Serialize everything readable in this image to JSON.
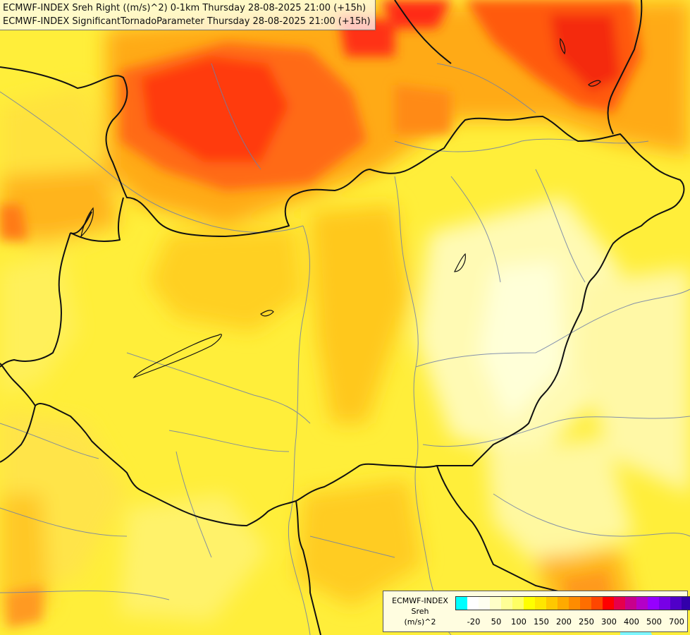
{
  "header": {
    "line1": "ECMWF-INDEX Sreh Right ((m/s)^2) 0-1km Thursday 28-08-2025 21:00 (+15h)",
    "line2": "ECMWF-INDEX SignificantTornadoParameter Thursday 28-08-2025 21:00 (+15h)"
  },
  "legend": {
    "title": [
      "ECMWF-INDEX",
      "Sreh",
      "(m/s)^2"
    ],
    "colors": [
      "#00ffff",
      "#ffffff",
      "#fffff0",
      "#ffffc8",
      "#ffff96",
      "#ffff64",
      "#ffff00",
      "#ffe600",
      "#ffc800",
      "#ffaa00",
      "#ff8c00",
      "#ff6e00",
      "#ff4600",
      "#ff0000",
      "#e6004b",
      "#c8008c",
      "#b400c8",
      "#9600ff",
      "#7800e6",
      "#5000c8",
      "#3200aa",
      "#00008c"
    ],
    "ticks": [
      {
        "label": "-20",
        "index": 1
      },
      {
        "label": "50",
        "index": 3
      },
      {
        "label": "100",
        "index": 5
      },
      {
        "label": "150",
        "index": 7
      },
      {
        "label": "200",
        "index": 9
      },
      {
        "label": "250",
        "index": 11
      },
      {
        "label": "300",
        "index": 13
      },
      {
        "label": "400",
        "index": 15
      },
      {
        "label": "500",
        "index": 17
      },
      {
        "label": "700",
        "index": 19
      }
    ]
  }
}
